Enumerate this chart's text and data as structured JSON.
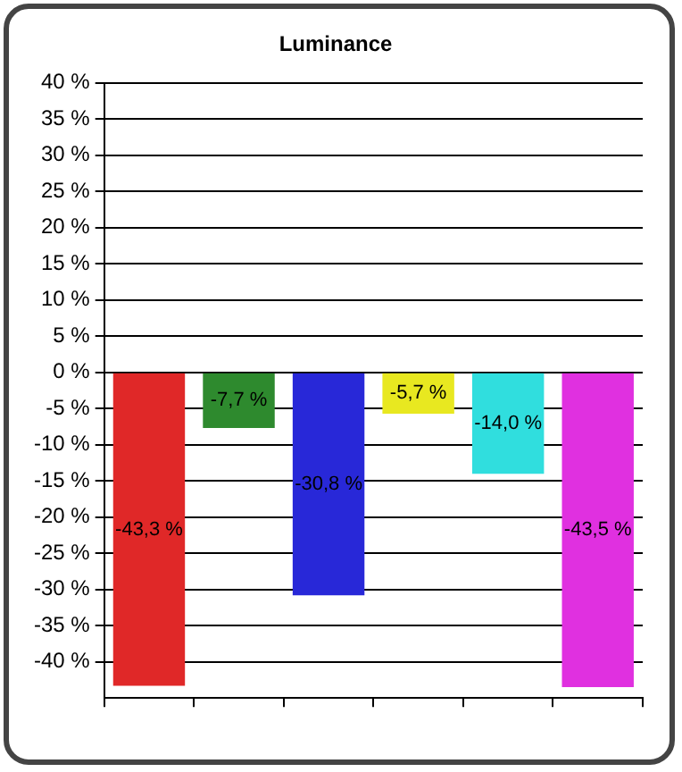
{
  "chart_data": {
    "type": "bar",
    "title": "Luminance",
    "categories": [
      null,
      null,
      null,
      null,
      null,
      null
    ],
    "values": [
      -43.3,
      -7.7,
      -30.8,
      -5.7,
      -14.0,
      -43.5
    ],
    "colors": [
      "#e02828",
      "#2e8a2e",
      "#2828d8",
      "#e8e820",
      "#30dede",
      "#e030e0"
    ],
    "value_labels": [
      "-43,3 %",
      "-7,7 %",
      "-30,8 %",
      "-5,7 %",
      "-14,0 %",
      "-43,5 %"
    ],
    "ylim": [
      -45,
      40
    ],
    "yticks": [
      {
        "value": -40,
        "label": "-40 %"
      },
      {
        "value": -35,
        "label": "-35 %"
      },
      {
        "value": -30,
        "label": "-30 %"
      },
      {
        "value": -25,
        "label": "-25 %"
      },
      {
        "value": -20,
        "label": "-20 %"
      },
      {
        "value": -15,
        "label": "-15 %"
      },
      {
        "value": -10,
        "label": "-10 %"
      },
      {
        "value": -5,
        "label": "-5 %"
      },
      {
        "value": 0,
        "label": "0 %"
      },
      {
        "value": 5,
        "label": "5 %"
      },
      {
        "value": 10,
        "label": "10 %"
      },
      {
        "value": 15,
        "label": "15 %"
      },
      {
        "value": 20,
        "label": "20 %"
      },
      {
        "value": 25,
        "label": "25 %"
      },
      {
        "value": 30,
        "label": "30 %"
      },
      {
        "value": 35,
        "label": "35 %"
      },
      {
        "value": 40,
        "label": "40 %"
      }
    ],
    "grid": "y",
    "legend": false
  }
}
